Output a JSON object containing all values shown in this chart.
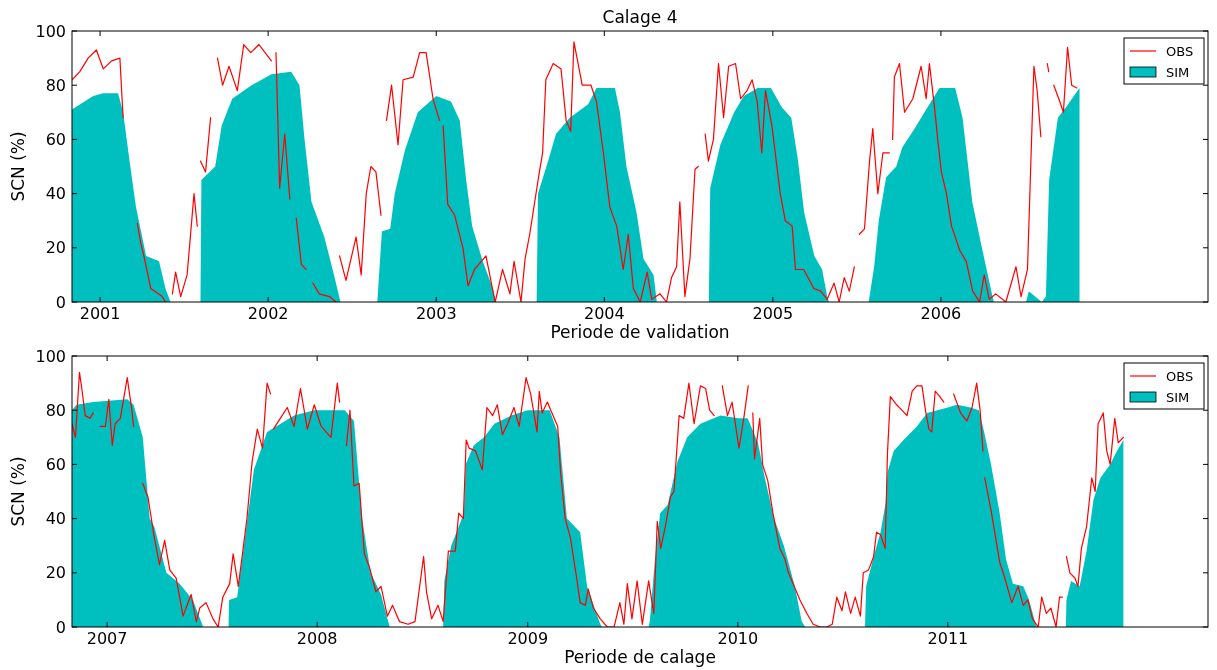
{
  "chart_data": [
    {
      "type": "area",
      "title": "Calage 4",
      "xlabel": "Periode de validation",
      "ylabel": "SCN (%)",
      "xlim": [
        "2000-11-01",
        "2007-08-04"
      ],
      "xticks": [
        "2001",
        "2002",
        "2003",
        "2004",
        "2005",
        "2006"
      ],
      "ylim": [
        0,
        100
      ],
      "yticks": [
        0,
        20,
        40,
        60,
        80,
        100
      ],
      "legend": "top right",
      "series": [
        {
          "name": "OBS",
          "type": "line",
          "color": "#ff0000",
          "x": [
            "2000-11-01",
            "2000-11-18",
            "2000-12-06",
            "2000-12-24",
            "2001-01-08",
            "2001-01-26",
            "2001-02-13",
            "2001-02-20",
            "2001-03-05",
            "2001-03-23",
            "2001-03-30",
            "2001-04-06",
            "2001-04-21",
            "2001-05-16",
            "2001-05-23",
            "2001-05-30",
            "2001-06-07",
            "2001-06-14",
            "2001-06-25",
            "2001-07-09",
            "2001-07-24",
            "2001-07-31",
            "2001-08-03",
            "2001-08-07",
            "2001-08-18",
            "2001-08-29",
            "2001-09-05",
            "2001-09-13",
            "2001-09-24",
            "2001-10-08",
            "2001-10-26",
            "2001-11-09",
            "2001-11-24",
            "2001-12-12",
            "2002-01-08",
            "2002-01-12",
            "2002-01-18",
            "2002-01-26",
            "2002-02-06",
            "2002-02-17",
            "2002-02-24",
            "2002-03-03",
            "2002-03-14",
            "2002-03-24",
            "2002-04-01",
            "2002-04-08",
            "2002-04-22",
            "2002-05-14",
            "2002-05-28",
            "2002-06-01",
            "2002-06-05",
            "2002-06-19",
            "2002-07-11",
            "2002-07-22",
            "2002-08-02",
            "2002-08-12",
            "2002-08-23",
            "2002-09-03",
            "2002-09-09",
            "2002-09-15",
            "2002-09-26",
            "2002-10-10",
            "2002-10-21",
            "2002-11-12",
            "2002-11-26",
            "2002-12-10",
            "2002-12-25",
            "2003-01-08",
            "2003-01-12",
            "2003-01-16",
            "2003-01-26",
            "2003-02-10",
            "2003-02-28",
            "2003-03-11",
            "2003-03-25",
            "2003-04-19",
            "2003-05-03",
            "2003-05-09",
            "2003-05-25",
            "2003-06-10",
            "2003-06-19",
            "2003-07-04",
            "2003-07-13",
            "2003-07-23",
            "2003-08-13",
            "2003-08-20",
            "2003-08-27",
            "2003-09-12",
            "2003-09-29",
            "2003-10-10",
            "2003-10-20",
            "2003-10-27",
            "2003-11-14",
            "2003-12-03",
            "2003-12-15",
            "2003-12-30",
            "2004-01-13",
            "2004-01-28",
            "2004-02-11",
            "2004-02-22",
            "2004-03-04",
            "2004-03-19",
            "2004-04-03",
            "2004-04-13",
            "2004-05-01",
            "2004-05-15",
            "2004-05-26",
            "2004-06-06",
            "2004-06-13",
            "2004-06-24",
            "2004-07-05",
            "2004-07-16",
            "2004-07-23",
            "2004-07-30",
            "2004-08-07",
            "2004-08-14",
            "2004-08-25",
            "2004-09-05",
            "2004-09-16",
            "2004-09-27",
            "2004-10-12",
            "2004-10-23",
            "2004-11-06",
            "2004-11-17",
            "2004-11-28",
            "2004-12-08",
            "2004-12-16",
            "2004-12-30",
            "2005-01-17",
            "2005-01-28",
            "2005-02-12",
            "2005-02-19",
            "2005-03-09",
            "2005-03-31",
            "2005-04-15",
            "2005-04-29",
            "2005-05-14",
            "2005-05-25",
            "2005-06-05",
            "2005-06-16",
            "2005-06-27",
            "2005-07-02",
            "2005-07-08",
            "2005-07-19",
            "2005-07-30",
            "2005-08-06",
            "2005-08-17",
            "2005-08-28",
            "2005-09-11",
            "2005-09-14",
            "2005-09-18",
            "2005-09-22",
            "2005-10-03",
            "2005-10-14",
            "2005-11-01",
            "2005-11-19",
            "2005-11-30",
            "2005-12-07",
            "2005-12-18",
            "2005-12-25",
            "2006-01-02",
            "2006-01-13",
            "2006-01-24",
            "2006-02-11",
            "2006-02-25",
            "2006-03-11",
            "2006-03-26",
            "2006-04-05",
            "2006-04-16",
            "2006-04-30",
            "2006-05-22",
            "2006-06-13",
            "2006-06-24",
            "2006-07-08",
            "2006-07-15",
            "2006-07-22",
            "2006-07-29",
            "2006-08-06",
            "2006-08-13",
            "2006-08-20",
            "2006-08-23",
            "2006-08-27",
            "2006-09-03",
            "2006-09-14",
            "2006-09-24",
            "2006-10-03",
            "2006-10-12",
            "2006-10-23"
          ],
          "values": [
            82,
            85,
            90,
            93,
            86,
            89,
            90,
            68,
            null,
            29,
            22,
            17,
            5,
            2,
            0,
            null,
            3,
            11,
            2,
            10,
            40,
            28,
            null,
            52,
            48,
            68,
            null,
            90,
            80,
            87,
            78,
            95,
            92,
            95,
            89,
            null,
            92,
            42,
            62,
            38,
            null,
            31,
            14,
            12,
            null,
            7,
            3,
            2,
            0,
            null,
            17,
            8,
            24,
            10,
            40,
            50,
            48,
            32,
            null,
            67,
            80,
            58,
            82,
            83,
            92,
            92,
            75,
            67,
            null,
            65,
            36,
            32,
            20,
            6,
            12,
            17,
            5,
            0,
            12,
            3,
            15,
            0,
            16,
            25,
            48,
            55,
            82,
            88,
            86,
            67,
            63,
            96,
            80,
            80,
            74,
            55,
            35,
            28,
            12,
            25,
            5,
            0,
            11,
            1,
            3,
            0,
            9,
            13,
            37,
            2,
            16,
            49,
            50,
            null,
            62,
            52,
            60,
            88,
            68,
            87,
            88,
            75,
            78,
            82,
            74,
            55,
            78,
            65,
            40,
            30,
            28,
            12,
            12,
            5,
            4,
            1,
            7,
            0,
            9,
            4,
            13,
            null,
            25,
            27,
            52,
            64,
            40,
            55,
            55,
            null,
            60,
            83,
            88,
            70,
            75,
            87,
            75,
            88,
            72,
            60,
            48,
            40,
            28,
            19,
            15,
            4,
            0,
            10,
            1,
            3,
            0,
            13,
            2,
            12,
            50,
            87,
            78,
            61,
            null,
            88,
            85,
            null,
            80,
            75,
            70,
            94,
            80,
            79
          ]
        },
        {
          "name": "SIM",
          "type": "area",
          "color": "#00bfbf",
          "x": [
            "2000-11-01",
            "2000-12-17",
            "2001-01-08",
            "2001-02-09",
            "2001-02-20",
            "2001-03-06",
            "2001-03-20",
            "2001-04-11",
            "2001-05-09",
            "2001-05-23",
            "2001-06-03",
            "2001-08-07",
            "2001-08-09",
            "2001-09-08",
            "2001-09-22",
            "2001-10-15",
            "2001-11-26",
            "2002-01-08",
            "2002-02-20",
            "2002-03-10",
            "2002-03-21",
            "2002-04-05",
            "2002-05-03",
            "2002-05-24",
            "2002-06-07",
            "2002-08-26",
            "2002-09-05",
            "2002-09-23",
            "2002-10-03",
            "2002-10-25",
            "2002-11-22",
            "2003-01-01",
            "2003-02-02",
            "2003-02-21",
            "2003-03-07",
            "2003-03-20",
            "2003-04-12",
            "2003-05-04",
            "2003-05-10",
            "2003-08-07",
            "2003-08-10",
            "2003-09-01",
            "2003-09-18",
            "2003-10-18",
            "2003-11-27",
            "2003-12-15",
            "2004-01-24",
            "2004-02-04",
            "2004-02-18",
            "2004-03-11",
            "2004-03-26",
            "2004-04-17",
            "2004-04-24",
            "2004-08-15",
            "2004-08-18",
            "2004-09-09",
            "2004-10-09",
            "2004-10-30",
            "2004-11-29",
            "2004-12-28",
            "2005-01-20",
            "2005-02-10",
            "2005-02-24",
            "2005-03-10",
            "2005-04-01",
            "2005-04-18",
            "2005-04-29",
            "2005-05-03",
            "2005-07-28",
            "2005-07-30",
            "2005-08-09",
            "2005-08-19",
            "2005-09-04",
            "2005-09-26",
            "2005-10-09",
            "2005-11-05",
            "2005-11-30",
            "2005-12-29",
            "2006-02-01",
            "2006-02-17",
            "2006-03-10",
            "2006-03-31",
            "2006-04-23",
            "2006-04-26",
            "2006-07-05",
            "2006-07-11",
            "2006-08-08",
            "2006-08-17",
            "2006-08-24",
            "2006-09-12",
            "2006-09-30",
            "2006-10-29"
          ],
          "values": [
            71,
            76,
            77,
            77,
            70,
            52,
            35,
            17,
            15,
            5,
            0,
            0,
            45,
            50,
            65,
            75,
            80,
            84,
            85,
            80,
            60,
            37,
            24,
            10,
            0,
            0,
            26,
            27,
            40,
            56,
            70,
            76,
            74,
            67,
            45,
            28,
            15,
            5,
            0,
            0,
            40,
            52,
            62,
            68,
            73,
            79,
            79,
            70,
            50,
            33,
            16,
            10,
            0,
            0,
            42,
            58,
            70,
            76,
            79,
            79,
            72,
            68,
            53,
            33,
            17,
            12,
            2,
            0,
            0,
            2,
            13,
            30,
            46,
            50,
            57,
            64,
            71,
            79,
            79,
            68,
            37,
            20,
            2,
            0,
            0,
            4,
            0,
            2,
            45,
            68,
            72,
            79
          ]
        }
      ]
    },
    {
      "type": "area",
      "xlabel": "Periode de calage",
      "ylabel": "SCN (%)",
      "xlim": [
        "2006-11-01",
        "2012-03-28"
      ],
      "xticks": [
        "2007",
        "2008",
        "2009",
        "2010",
        "2011"
      ],
      "ylim": [
        0,
        100
      ],
      "yticks": [
        0,
        20,
        40,
        60,
        80,
        100
      ],
      "legend": "top right",
      "series": [
        {
          "name": "OBS",
          "type": "line",
          "color": "#ff0000",
          "x": [
            "2006-11-01",
            "2006-11-07",
            "2006-11-14",
            "2006-11-18",
            "2006-11-24",
            "2006-12-02",
            "2006-12-08",
            "2006-12-14",
            "2006-12-20",
            "2006-12-29",
            "2007-01-04",
            "2007-01-10",
            "2007-01-15",
            "2007-01-24",
            "2007-02-05",
            "2007-02-13",
            "2007-02-16",
            "2007-02-24",
            "2007-03-04",
            "2007-03-13",
            "2007-03-24",
            "2007-04-02",
            "2007-04-11",
            "2007-04-20",
            "2007-05-01",
            "2007-05-13",
            "2007-05-27",
            "2007-06-05",
            "2007-06-11",
            "2007-06-22",
            "2007-07-04",
            "2007-07-13",
            "2007-07-21",
            "2007-08-02",
            "2007-08-08",
            "2007-08-17",
            "2007-09-01",
            "2007-09-10",
            "2007-09-19",
            "2007-09-28",
            "2007-10-06",
            "2007-10-12",
            "2007-10-14",
            "2007-10-17",
            "2007-10-29",
            "2007-11-10",
            "2007-11-22",
            "2007-12-03",
            "2007-12-15",
            "2007-12-27",
            "2008-01-08",
            "2008-01-25",
            "2008-02-05",
            "2008-02-09",
            "2008-02-15",
            "2008-02-21",
            "2008-02-27",
            "2008-03-05",
            "2008-03-14",
            "2008-03-23",
            "2008-04-01",
            "2008-04-12",
            "2008-04-21",
            "2008-05-02",
            "2008-05-11",
            "2008-05-23",
            "2008-06-07",
            "2008-06-19",
            "2008-07-04",
            "2008-07-09",
            "2008-07-18",
            "2008-07-29",
            "2008-08-07",
            "2008-08-16",
            "2008-08-28",
            "2008-09-03",
            "2008-09-11",
            "2008-09-16",
            "2008-09-21",
            "2008-10-02",
            "2008-10-14",
            "2008-10-22",
            "2008-11-01",
            "2008-11-09",
            "2008-11-18",
            "2008-11-27",
            "2008-12-08",
            "2008-12-17",
            "2008-12-29",
            "2009-01-06",
            "2009-01-17",
            "2009-01-21",
            "2009-01-26",
            "2009-02-04",
            "2009-02-12",
            "2009-02-22",
            "2009-02-27",
            "2009-03-07",
            "2009-03-16",
            "2009-03-27",
            "2009-04-02",
            "2009-04-11",
            "2009-04-16",
            "2009-04-25",
            "2009-05-07",
            "2009-05-19",
            "2009-05-31",
            "2009-06-10",
            "2009-06-17",
            "2009-06-23",
            "2009-07-01",
            "2009-07-10",
            "2009-07-19",
            "2009-07-30",
            "2009-08-08",
            "2009-08-14",
            "2009-08-20",
            "2009-08-28",
            "2009-09-06",
            "2009-09-12",
            "2009-09-21",
            "2009-09-29",
            "2009-10-08",
            "2009-10-17",
            "2009-10-28",
            "2009-11-06",
            "2009-11-13",
            "2009-11-21",
            "2009-11-28",
            "2009-12-05",
            "2009-12-14",
            "2009-12-22",
            "2010-01-03",
            "2010-01-12",
            "2010-01-19",
            "2010-01-23",
            "2010-01-27",
            "2010-01-30",
            "2010-02-08",
            "2010-02-13",
            "2010-02-22",
            "2010-03-03",
            "2010-03-15",
            "2010-03-24",
            "2010-03-30",
            "2010-04-11",
            "2010-04-19",
            "2010-05-01",
            "2010-05-12",
            "2010-05-24",
            "2010-06-05",
            "2010-06-14",
            "2010-06-22",
            "2010-07-01",
            "2010-07-07",
            "2010-07-16",
            "2010-07-24",
            "2010-08-02",
            "2010-08-07",
            "2010-08-16",
            "2010-08-25",
            "2010-08-30",
            "2010-09-06",
            "2010-09-14",
            "2010-09-18",
            "2010-09-23",
            "2010-10-04",
            "2010-10-13",
            "2010-10-22",
            "2010-10-31",
            "2010-11-08",
            "2010-11-17",
            "2010-11-23",
            "2010-11-29",
            "2010-12-04",
            "2010-12-10",
            "2010-12-18",
            "2010-12-25",
            "2011-01-03",
            "2011-01-11",
            "2011-01-23",
            "2011-02-03",
            "2011-02-12",
            "2011-02-20",
            "2011-02-26",
            "2011-03-03",
            "2011-03-04",
            "2011-03-06",
            "2011-03-17",
            "2011-04-01",
            "2011-04-10",
            "2011-04-22",
            "2011-05-03",
            "2011-05-12",
            "2011-05-20",
            "2011-05-28",
            "2011-06-07",
            "2011-06-13",
            "2011-06-21",
            "2011-06-29",
            "2011-07-08",
            "2011-07-14",
            "2011-07-19",
            "2011-07-22",
            "2011-07-26",
            "2011-08-01",
            "2011-08-10",
            "2011-08-15",
            "2011-08-21",
            "2011-08-30",
            "2011-09-08",
            "2011-09-14",
            "2011-09-19",
            "2011-09-28",
            "2011-10-04",
            "2011-10-10",
            "2011-10-18",
            "2011-10-24",
            "2011-11-02"
          ],
          "values": [
            75,
            70,
            94,
            88,
            78,
            77,
            79,
            null,
            74,
            74,
            84,
            67,
            75,
            77,
            92,
            80,
            74,
            null,
            53,
            48,
            33,
            23,
            32,
            21,
            18,
            4,
            12,
            2,
            7,
            9,
            3,
            0,
            11,
            16,
            27,
            15,
            40,
            61,
            73,
            66,
            90,
            86,
            null,
            73,
            77,
            81,
            74,
            88,
            73,
            82,
            74,
            70,
            90,
            83,
            null,
            67,
            80,
            52,
            53,
            27,
            22,
            13,
            15,
            4,
            8,
            2,
            1,
            2,
            26,
            13,
            3,
            8,
            2,
            28,
            28,
            42,
            40,
            69,
            66,
            65,
            58,
            81,
            78,
            82,
            71,
            75,
            81,
            74,
            92,
            86,
            72,
            87,
            79,
            83,
            79,
            74,
            57,
            40,
            33,
            18,
            9,
            8,
            14,
            7,
            3,
            0,
            0,
            9,
            1,
            16,
            3,
            17,
            1,
            17,
            5,
            39,
            29,
            37,
            48,
            50,
            78,
            77,
            90,
            75,
            89,
            88,
            80,
            78,
            null,
            89,
            78,
            83,
            66,
            78,
            89,
            null,
            79,
            62,
            77,
            60,
            54,
            42,
            29,
            25,
            20,
            14,
            10,
            5,
            1,
            0,
            0,
            1,
            11,
            6,
            13,
            5,
            11,
            4,
            20,
            21,
            26,
            35,
            34,
            29,
            64,
            85,
            82,
            80,
            78,
            87,
            89,
            89,
            80,
            73,
            72,
            87,
            85,
            83,
            null,
            86,
            79,
            76,
            81,
            90,
            80,
            65,
            null,
            55,
            43,
            24,
            18,
            9,
            15,
            8,
            10,
            3,
            0,
            11,
            5,
            7,
            0,
            11,
            11,
            null,
            26,
            20,
            18,
            15,
            29,
            37,
            55,
            50,
            75,
            79,
            65,
            60,
            77,
            68,
            70
          ]
        },
        {
          "name": "SIM",
          "type": "area",
          "color": "#00bfbf",
          "x": [
            "2006-11-01",
            "2006-11-09",
            "2006-12-08",
            "2007-02-05",
            "2007-02-16",
            "2007-03-04",
            "2007-03-16",
            "2007-03-24",
            "2007-04-14",
            "2007-05-07",
            "2007-05-30",
            "2007-06-17",
            "2007-07-31",
            "2007-08-01",
            "2007-08-15",
            "2007-09-02",
            "2007-09-13",
            "2007-10-06",
            "2007-11-22",
            "2007-12-27",
            "2008-02-18",
            "2008-03-05",
            "2008-03-19",
            "2008-04-03",
            "2008-04-21",
            "2008-05-06",
            "2008-08-07",
            "2008-08-09",
            "2008-08-21",
            "2008-09-12",
            "2008-09-15",
            "2008-09-29",
            "2008-10-17",
            "2008-11-04",
            "2008-12-03",
            "2009-01-01",
            "2009-02-08",
            "2009-02-25",
            "2009-03-10",
            "2009-04-02",
            "2009-04-14",
            "2009-05-07",
            "2009-05-10",
            "2009-07-30",
            "2009-08-01",
            "2009-08-10",
            "2009-08-19",
            "2009-09-01",
            "2009-09-18",
            "2009-10-05",
            "2009-10-28",
            "2009-12-02",
            "2010-01-01",
            "2010-01-18",
            "2010-02-05",
            "2010-02-17",
            "2010-03-05",
            "2010-03-22",
            "2010-04-10",
            "2010-04-22",
            "2010-04-28",
            "2010-08-10",
            "2010-08-12",
            "2010-08-25",
            "2010-09-06",
            "2010-09-15",
            "2010-09-18",
            "2010-09-29",
            "2010-10-16",
            "2010-11-08",
            "2010-11-26",
            "2011-01-01",
            "2011-01-17",
            "2011-02-09",
            "2011-02-24",
            "2011-03-05",
            "2011-03-17",
            "2011-04-01",
            "2011-04-12",
            "2011-04-24",
            "2011-05-12",
            "2011-05-22",
            "2011-06-04",
            "2011-07-25",
            "2011-07-26",
            "2011-08-03",
            "2011-08-18",
            "2011-08-30",
            "2011-09-11",
            "2011-09-23",
            "2011-10-10",
            "2011-10-22",
            "2011-11-02"
          ],
          "values": [
            80,
            82,
            83,
            84,
            82,
            70,
            40,
            37,
            20,
            16,
            10,
            0,
            0,
            10,
            11,
            40,
            58,
            72,
            78,
            80,
            80,
            76,
            40,
            20,
            12,
            0,
            0,
            17,
            30,
            42,
            60,
            67,
            70,
            75,
            78,
            80,
            80,
            70,
            40,
            35,
            15,
            1,
            0,
            0,
            2,
            25,
            42,
            45,
            61,
            70,
            75,
            78,
            77,
            77,
            68,
            55,
            40,
            30,
            15,
            2,
            0,
            0,
            15,
            26,
            35,
            46,
            57,
            65,
            69,
            74,
            79,
            81,
            82,
            81,
            80,
            72,
            60,
            42,
            25,
            16,
            15,
            10,
            0,
            0,
            10,
            17,
            15,
            28,
            47,
            55,
            60,
            65,
            69
          ]
        }
      ]
    }
  ]
}
